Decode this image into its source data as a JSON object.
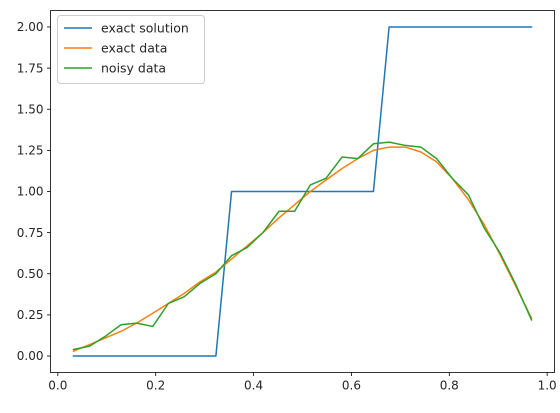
{
  "chart_data": {
    "type": "line",
    "title": "",
    "xlabel": "",
    "ylabel": "",
    "xlim": [
      -0.015,
      1.015
    ],
    "ylim": [
      -0.1,
      2.1
    ],
    "xticks": [
      0.0,
      0.2,
      0.4,
      0.6,
      0.8,
      1.0
    ],
    "yticks": [
      0.0,
      0.25,
      0.5,
      0.75,
      1.0,
      1.25,
      1.5,
      1.75,
      2.0
    ],
    "xtick_labels": [
      "0.0",
      "0.2",
      "0.4",
      "0.6",
      "0.8",
      "1.0"
    ],
    "ytick_labels": [
      "0.00",
      "0.25",
      "0.50",
      "0.75",
      "1.00",
      "1.25",
      "1.50",
      "1.75",
      "2.00"
    ],
    "grid": false,
    "legend_position": "top-left",
    "series": [
      {
        "name": "exact solution",
        "color": "#1f77b4",
        "x": [
          0.032,
          0.065,
          0.097,
          0.129,
          0.161,
          0.194,
          0.226,
          0.258,
          0.29,
          0.323,
          0.355,
          0.387,
          0.419,
          0.452,
          0.484,
          0.516,
          0.548,
          0.581,
          0.613,
          0.645,
          0.677,
          0.71,
          0.742,
          0.774,
          0.806,
          0.839,
          0.871,
          0.903,
          0.935,
          0.968
        ],
        "y": [
          0,
          0,
          0,
          0,
          0,
          0,
          0,
          0,
          0,
          0,
          1,
          1,
          1,
          1,
          1,
          1,
          1,
          1,
          1,
          1,
          2,
          2,
          2,
          2,
          2,
          2,
          2,
          2,
          2,
          2
        ]
      },
      {
        "name": "exact data",
        "color": "#ff7f0e",
        "x": [
          0.032,
          0.065,
          0.097,
          0.129,
          0.161,
          0.194,
          0.226,
          0.258,
          0.29,
          0.323,
          0.355,
          0.387,
          0.419,
          0.452,
          0.484,
          0.516,
          0.548,
          0.581,
          0.613,
          0.645,
          0.677,
          0.71,
          0.742,
          0.774,
          0.806,
          0.839,
          0.871,
          0.903,
          0.935,
          0.968
        ],
        "y": [
          0.03,
          0.07,
          0.11,
          0.15,
          0.2,
          0.26,
          0.32,
          0.38,
          0.45,
          0.51,
          0.59,
          0.67,
          0.75,
          0.84,
          0.92,
          1.0,
          1.07,
          1.14,
          1.2,
          1.25,
          1.27,
          1.27,
          1.24,
          1.18,
          1.08,
          0.95,
          0.8,
          0.62,
          0.43,
          0.23
        ]
      },
      {
        "name": "noisy data",
        "color": "#2ca02c",
        "x": [
          0.032,
          0.065,
          0.097,
          0.129,
          0.161,
          0.194,
          0.226,
          0.258,
          0.29,
          0.323,
          0.355,
          0.387,
          0.419,
          0.452,
          0.484,
          0.516,
          0.548,
          0.581,
          0.613,
          0.645,
          0.677,
          0.71,
          0.742,
          0.774,
          0.806,
          0.839,
          0.871,
          0.903,
          0.935,
          0.968
        ],
        "y": [
          0.04,
          0.06,
          0.12,
          0.19,
          0.2,
          0.18,
          0.32,
          0.36,
          0.44,
          0.5,
          0.61,
          0.66,
          0.75,
          0.88,
          0.88,
          1.04,
          1.08,
          1.21,
          1.2,
          1.29,
          1.3,
          1.28,
          1.27,
          1.2,
          1.08,
          0.98,
          0.78,
          0.63,
          0.44,
          0.22
        ]
      }
    ]
  }
}
